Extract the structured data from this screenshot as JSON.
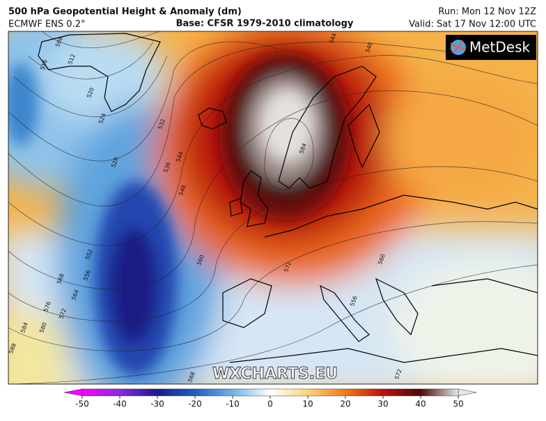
{
  "header": {
    "title": "500 hPa Geopotential Height & Anomaly (dm)",
    "model": "ECMWF ENS 0.2°",
    "base": "Base: CFSR 1979-2010 climatology",
    "run": "Run: Mon 12 Nov 12Z",
    "valid": "Valid: Sat 17 Nov 12:00 UTC"
  },
  "logo": "MetDesk",
  "watermark": "WXCHARTS.EU",
  "contour_labels": [
    508,
    512,
    516,
    520,
    524,
    532,
    528,
    536,
    544,
    548,
    552,
    556,
    560,
    564,
    568,
    576,
    572,
    584,
    580,
    588,
    544,
    540,
    584,
    572,
    560,
    556,
    568,
    572
  ],
  "colorbar": {
    "lim": [
      -50,
      50
    ],
    "ticks": [
      -50,
      -40,
      -30,
      -20,
      -10,
      0,
      10,
      20,
      30,
      40,
      50
    ],
    "colors": [
      "#ff00ff",
      "#8a2be2",
      "#1a1a8c",
      "#1f5fc4",
      "#6fb3e6",
      "#ffffff",
      "#ffd27a",
      "#f07a1a",
      "#c0100a",
      "#4a0a0a",
      "#e8e8e8"
    ]
  }
}
